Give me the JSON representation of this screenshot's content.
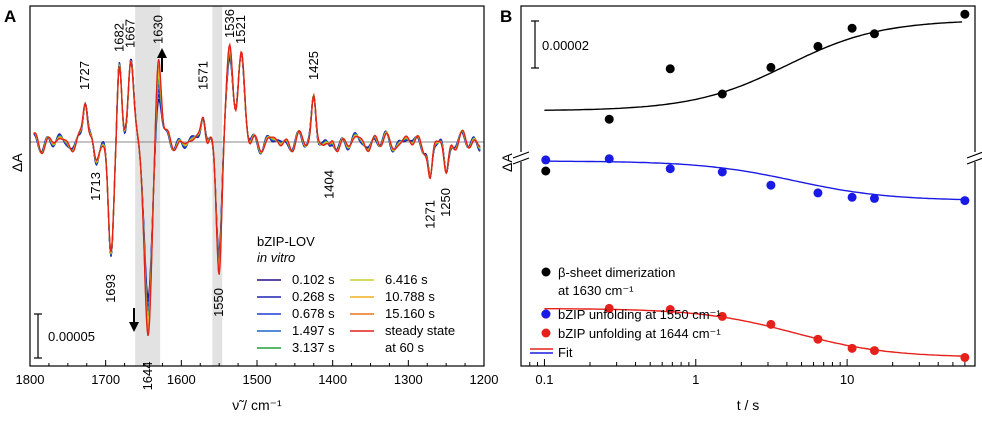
{
  "chart_data": [
    {
      "panel": "A",
      "type": "line",
      "xlabel": "ν̃ / cm⁻¹",
      "ylabel": "ΔA",
      "xlim": [
        1800,
        1200
      ],
      "x_ticks": [
        1800,
        1700,
        1600,
        1500,
        1400,
        1300,
        1200
      ],
      "shaded_ranges": [
        [
          1661,
          1628
        ],
        [
          1559,
          1546
        ]
      ],
      "scale_bar": "0.00005",
      "legend_title": "bZIP-LOV",
      "legend_subtitle": "in vitro",
      "series": [
        {
          "name": "0.102 s",
          "color": "#2a0a8a"
        },
        {
          "name": "0.268 s",
          "color": "#2020b4"
        },
        {
          "name": "0.678 s",
          "color": "#1f3fd6"
        },
        {
          "name": "1.497 s",
          "color": "#1a66c8"
        },
        {
          "name": "3.137 s",
          "color": "#22a03a"
        },
        {
          "name": "6.416 s",
          "color": "#c8cf2a"
        },
        {
          "name": "10.788 s",
          "color": "#f0b020"
        },
        {
          "name": "15.160 s",
          "color": "#e8741a"
        },
        {
          "name": "steady state at 60 s",
          "label_line1": "steady state",
          "label_line2": "at 60 s",
          "color": "#e0201a"
        }
      ],
      "peaks": [
        {
          "x": 1727,
          "label": "1727",
          "y": 0.42
        },
        {
          "x": 1713,
          "label": "1713",
          "y": -0.14
        },
        {
          "x": 1693,
          "label": "1693",
          "y": -1.18
        },
        {
          "x": 1682,
          "label": "1682",
          "y": 0.8
        },
        {
          "x": 1667,
          "label": "1667",
          "y": 0.88
        },
        {
          "x": 1644,
          "label": "1644",
          "y": -1.9
        },
        {
          "x": 1630,
          "label": "1630",
          "y": 0.9
        },
        {
          "x": 1571,
          "label": "1571",
          "y": 0.32
        },
        {
          "x": 1550,
          "label": "1550",
          "y": -1.32
        },
        {
          "x": 1536,
          "label": "1536",
          "y": 1.0
        },
        {
          "x": 1521,
          "label": "1521",
          "y": 0.84
        },
        {
          "x": 1425,
          "label": "1425",
          "y": 0.48
        },
        {
          "x": 1404,
          "label": "1404",
          "y": -0.12
        },
        {
          "x": 1271,
          "label": "1271",
          "y": -0.42
        },
        {
          "x": 1250,
          "label": "1250",
          "y": -0.3
        }
      ]
    },
    {
      "panel": "B",
      "type": "scatter",
      "xlabel": "t / s",
      "ylabel": "ΔA",
      "xscale": "log",
      "xlim": [
        0.07,
        70
      ],
      "x_ticks": [
        0.1,
        1,
        10
      ],
      "x_tick_labels": [
        "0.1",
        "1",
        "10"
      ],
      "scale_bar": "0.00002",
      "legend": [
        {
          "label": "β-sheet dimerization",
          "label2": "at 1630 cm⁻¹",
          "color": "#000000"
        },
        {
          "label": "bZIP unfolding at 1550 cm⁻¹",
          "color": "#1a1ae6"
        },
        {
          "label": "bZIP unfolding at 1644 cm⁻¹",
          "color": "#e6201a"
        },
        {
          "label": "Fit",
          "color": "#1a1ae6"
        }
      ],
      "series": [
        {
          "name": "β-sheet dimerization at 1630 cm⁻¹",
          "color": "#000000",
          "t": [
            0.102,
            0.268,
            0.678,
            1.497,
            3.137,
            6.416,
            10.788,
            15.16,
            60
          ],
          "values": [
            -0.15,
            0.22,
            0.58,
            0.4,
            0.59,
            0.74,
            0.87,
            0.83,
            0.97
          ],
          "fit": {
            "base": 0.28,
            "amp": 0.65,
            "tau": 4.0,
            "n": 1.4
          }
        },
        {
          "name": "bZIP unfolding at 1550 cm⁻¹",
          "color": "#1a1ae6",
          "t": [
            0.102,
            0.268,
            0.678,
            1.497,
            3.137,
            6.416,
            10.788,
            15.16,
            60
          ],
          "values": [
            0.91,
            0.92,
            0.83,
            0.8,
            0.68,
            0.61,
            0.57,
            0.56,
            0.54
          ],
          "fit": {
            "base": 0.9,
            "amp": -0.36,
            "tau": 4.5,
            "n": 1.4
          }
        },
        {
          "name": "bZIP unfolding at 1644 cm⁻¹",
          "color": "#e6201a",
          "t": [
            0.102,
            0.268,
            0.678,
            1.497,
            3.137,
            6.416,
            10.788,
            15.16,
            60
          ],
          "values": [
            0.42,
            0.47,
            0.46,
            0.4,
            0.33,
            0.2,
            0.12,
            0.1,
            0.04
          ],
          "fit": {
            "base": 0.47,
            "amp": -0.43,
            "tau": 4.5,
            "n": 1.4
          }
        }
      ]
    }
  ]
}
